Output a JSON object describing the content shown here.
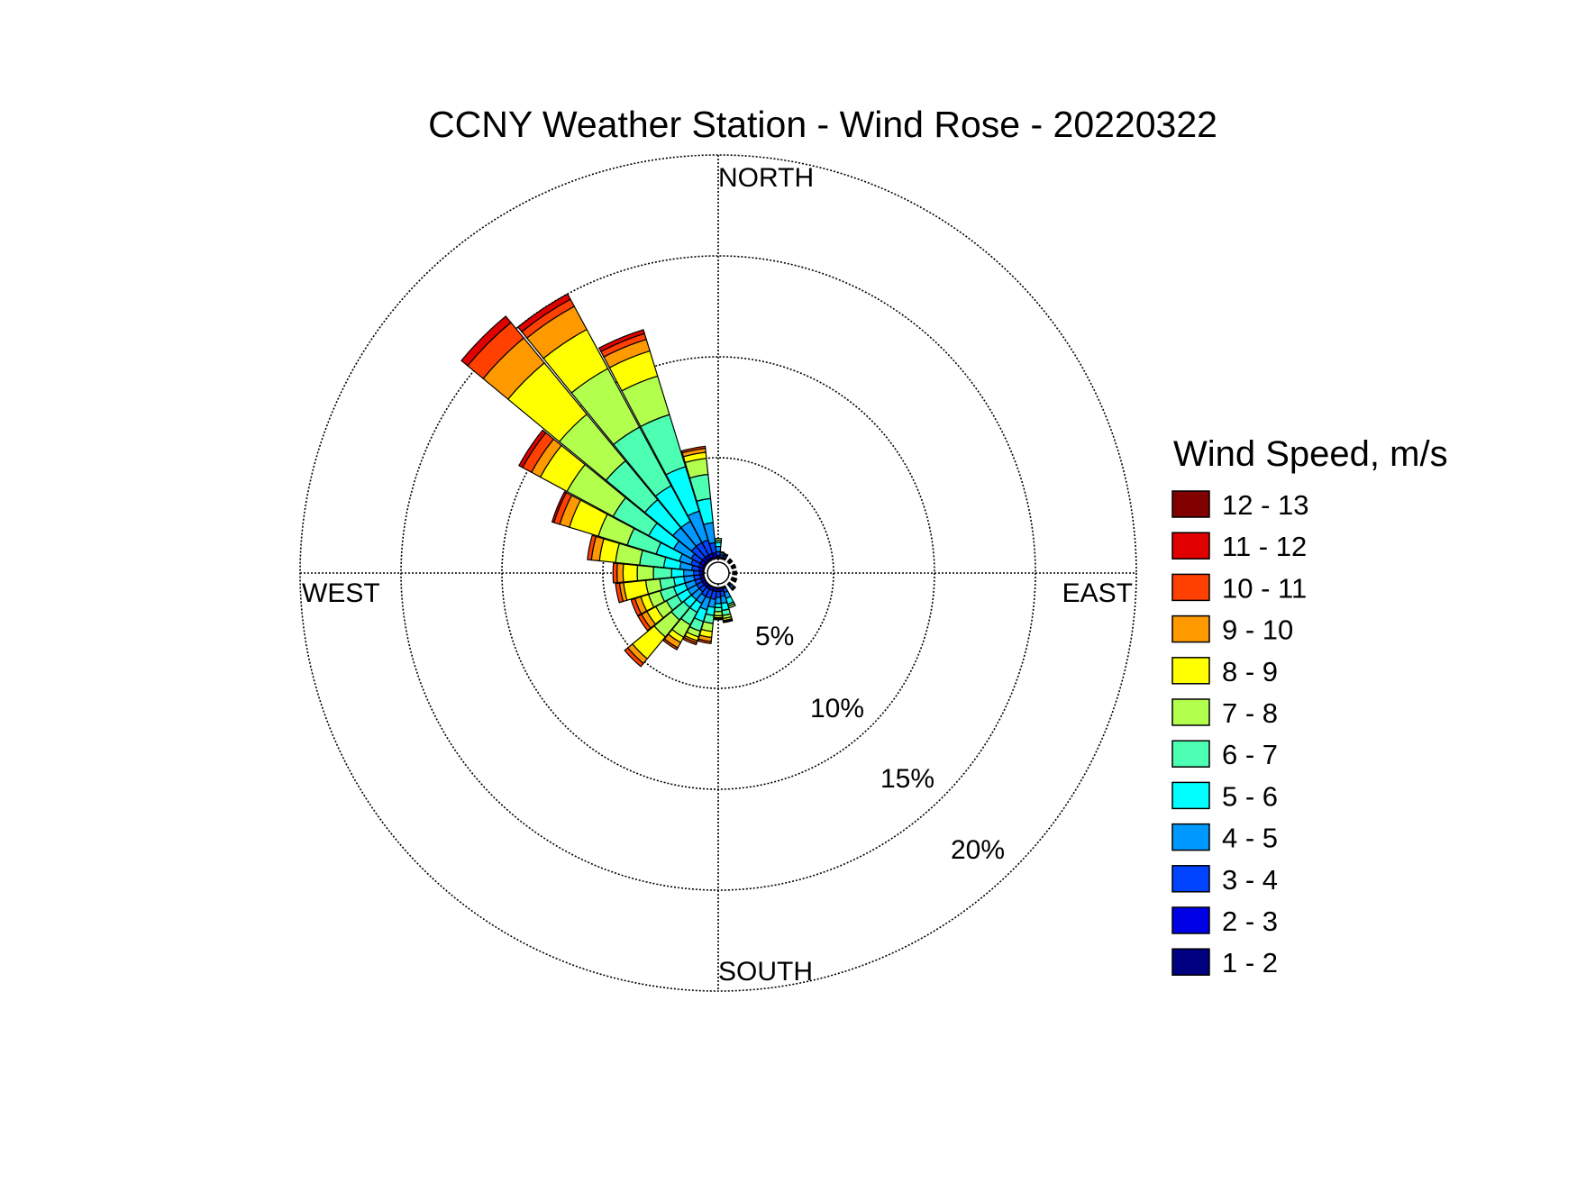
{
  "chart_data": {
    "type": "wind-rose",
    "title": "CCNY Weather Station - Wind Rose - 20220322",
    "direction_labels": {
      "north": "NORTH",
      "east": "EAST",
      "south": "SOUTH",
      "west": "WEST"
    },
    "radial_axis": {
      "max": 20,
      "ticks": [
        5,
        10,
        15,
        20
      ],
      "tick_labels": [
        "5%",
        "10%",
        "15%",
        "20%"
      ],
      "unit": "%"
    },
    "grid": true,
    "legend": {
      "title": "Wind Speed, m/s",
      "position": "right",
      "bins": [
        {
          "label": "12 - 13",
          "color": "#800000"
        },
        {
          "label": "11 - 12",
          "color": "#e00000"
        },
        {
          "label": "10 - 11",
          "color": "#ff4000"
        },
        {
          "label": "9 - 10",
          "color": "#ff9900"
        },
        {
          "label": "8 - 9",
          "color": "#ffff00"
        },
        {
          "label": "7 - 8",
          "color": "#b2ff4d"
        },
        {
          "label": "6 - 7",
          "color": "#4dffb2"
        },
        {
          "label": "5 - 6",
          "color": "#00ffff"
        },
        {
          "label": "4 - 5",
          "color": "#0099ff"
        },
        {
          "label": "3 - 4",
          "color": "#0044ff"
        },
        {
          "label": "2 - 3",
          "color": "#0000e6"
        },
        {
          "label": "1 - 2",
          "color": "#000080"
        }
      ]
    },
    "speed_bin_order": [
      "1 - 2",
      "2 - 3",
      "3 - 4",
      "4 - 5",
      "5 - 6",
      "6 - 7",
      "7 - 8",
      "8 - 9",
      "9 - 10",
      "10 - 11",
      "11 - 12",
      "12 - 13"
    ],
    "sectors": [
      {
        "direction_deg": 292.5,
        "cumulative_percent": [
          0.1,
          0.3,
          0.7,
          1.3,
          2.5,
          4.0,
          5.5,
          7.0,
          7.5,
          7.8,
          7.9,
          7.9
        ]
      },
      {
        "direction_deg": 303.75,
        "cumulative_percent": [
          0.1,
          0.3,
          0.8,
          1.8,
          3.2,
          5.2,
          7.8,
          9.3,
          9.8,
          10.3,
          10.5,
          10.5
        ]
      },
      {
        "direction_deg": 315,
        "cumulative_percent": [
          0.1,
          0.3,
          1.0,
          2.2,
          4.0,
          6.5,
          9.5,
          12.8,
          14.4,
          15.4,
          15.8,
          15.8
        ]
      },
      {
        "direction_deg": 326.25,
        "cumulative_percent": [
          0.1,
          0.3,
          1.0,
          2.2,
          4.2,
          7.5,
          10.8,
          13.0,
          14.3,
          14.7,
          15.0,
          15.0
        ]
      },
      {
        "direction_deg": 337.5,
        "cumulative_percent": [
          0.1,
          0.3,
          1.0,
          2.5,
          4.8,
          7.5,
          9.5,
          10.8,
          11.4,
          11.7,
          11.9,
          11.9
        ]
      },
      {
        "direction_deg": 348.75,
        "cumulative_percent": [
          0.1,
          0.3,
          0.8,
          1.8,
          3.0,
          4.2,
          5.0,
          5.3,
          5.5,
          5.6,
          5.6,
          5.6
        ]
      },
      {
        "direction_deg": 0,
        "cumulative_percent": [
          0.05,
          0.15,
          0.35,
          0.6,
          0.8,
          0.9,
          1.0,
          1.0,
          1.0,
          1.0,
          1.0,
          1.0
        ]
      },
      {
        "direction_deg": 11.25,
        "cumulative_percent": [
          0.05,
          0.1,
          0.2,
          0.3,
          0.35,
          0.35,
          0.35,
          0.35,
          0.35,
          0.35,
          0.35,
          0.35
        ]
      },
      {
        "direction_deg": 22.5,
        "cumulative_percent": [
          0.05,
          0.1,
          0.2,
          0.25,
          0.3,
          0.3,
          0.3,
          0.3,
          0.3,
          0.3,
          0.3,
          0.3
        ]
      },
      {
        "direction_deg": 45,
        "cumulative_percent": [
          0.05,
          0.1,
          0.15,
          0.2,
          0.2,
          0.2,
          0.2,
          0.2,
          0.2,
          0.2,
          0.2,
          0.2
        ]
      },
      {
        "direction_deg": 67.5,
        "cumulative_percent": [
          0.05,
          0.1,
          0.15,
          0.2,
          0.2,
          0.2,
          0.2,
          0.2,
          0.2,
          0.2,
          0.2,
          0.2
        ]
      },
      {
        "direction_deg": 90,
        "cumulative_percent": [
          0.05,
          0.1,
          0.15,
          0.2,
          0.2,
          0.2,
          0.2,
          0.2,
          0.2,
          0.2,
          0.2,
          0.2
        ]
      },
      {
        "direction_deg": 112.5,
        "cumulative_percent": [
          0.05,
          0.1,
          0.15,
          0.2,
          0.25,
          0.25,
          0.25,
          0.25,
          0.25,
          0.25,
          0.25,
          0.25
        ]
      },
      {
        "direction_deg": 135,
        "cumulative_percent": [
          0.05,
          0.1,
          0.2,
          0.3,
          0.35,
          0.4,
          0.4,
          0.4,
          0.4,
          0.4,
          0.4,
          0.4
        ]
      },
      {
        "direction_deg": 157.5,
        "cumulative_percent": [
          0.05,
          0.1,
          0.3,
          0.6,
          0.9,
          1.0,
          1.1,
          1.1,
          1.1,
          1.1,
          1.1,
          1.1
        ]
      },
      {
        "direction_deg": 168.75,
        "cumulative_percent": [
          0.05,
          0.2,
          0.45,
          0.8,
          1.15,
          1.4,
          1.55,
          1.65,
          1.7,
          1.75,
          1.75,
          1.75
        ]
      },
      {
        "direction_deg": 180,
        "cumulative_percent": [
          0.05,
          0.2,
          0.5,
          0.8,
          1.0,
          1.2,
          1.4,
          1.5,
          1.55,
          1.6,
          1.6,
          1.6
        ]
      },
      {
        "direction_deg": 191.25,
        "cumulative_percent": [
          0.05,
          0.2,
          0.6,
          1.0,
          1.4,
          1.8,
          2.2,
          2.5,
          2.7,
          2.8,
          2.8,
          2.8
        ]
      },
      {
        "direction_deg": 202.5,
        "cumulative_percent": [
          0.05,
          0.2,
          0.6,
          1.2,
          1.8,
          2.3,
          2.6,
          2.8,
          2.9,
          3.0,
          3.0,
          3.0
        ]
      },
      {
        "direction_deg": 213.75,
        "cumulative_percent": [
          0.05,
          0.2,
          0.6,
          1.0,
          1.5,
          2.2,
          2.9,
          3.2,
          3.5,
          3.6,
          3.6,
          3.6
        ]
      },
      {
        "direction_deg": 225,
        "cumulative_percent": [
          0.05,
          0.2,
          0.5,
          1.0,
          1.5,
          2.3,
          3.4,
          4.8,
          5.1,
          5.3,
          5.3,
          5.3
        ]
      },
      {
        "direction_deg": 236.25,
        "cumulative_percent": [
          0.05,
          0.2,
          0.5,
          1.0,
          1.6,
          2.2,
          2.8,
          3.3,
          3.6,
          3.8,
          3.8,
          3.8
        ]
      },
      {
        "direction_deg": 247.5,
        "cumulative_percent": [
          0.05,
          0.2,
          0.5,
          1.0,
          1.6,
          2.3,
          2.9,
          3.3,
          3.6,
          3.8,
          3.8,
          3.8
        ]
      },
      {
        "direction_deg": 258.75,
        "cumulative_percent": [
          0.05,
          0.2,
          0.5,
          1.0,
          1.5,
          2.2,
          2.9,
          4.0,
          4.2,
          4.4,
          4.4,
          4.4
        ]
      },
      {
        "direction_deg": 270,
        "cumulative_percent": [
          0.05,
          0.2,
          0.5,
          1.0,
          1.6,
          2.5,
          3.3,
          4.0,
          4.3,
          4.5,
          4.5,
          4.5
        ]
      },
      {
        "direction_deg": 281.25,
        "cumulative_percent": [
          0.05,
          0.25,
          0.6,
          1.2,
          2.0,
          3.2,
          4.4,
          5.2,
          5.6,
          5.8,
          5.8,
          5.8
        ]
      }
    ]
  }
}
